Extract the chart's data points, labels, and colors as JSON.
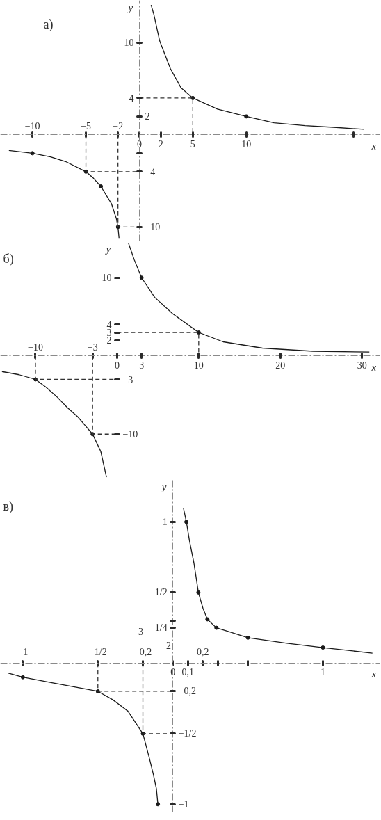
{
  "chart_data": [
    {
      "type": "line",
      "title": "а)",
      "xlabel": "x",
      "ylabel": "y",
      "xlim": [
        -13,
        22.5
      ],
      "ylim": [
        -11.6,
        14.6
      ],
      "xticks": [
        0,
        2,
        5,
        10,
        {
          "value": 20,
          "label": null
        }
      ],
      "x2lim": [
        -13,
        22.5
      ],
      "x2ticks": [
        {
          "value": -10,
          "label": "−10"
        },
        {
          "value": -5,
          "label": "−5"
        },
        {
          "value": -2,
          "label": "−2"
        }
      ],
      "yticks": [
        10,
        4
      ],
      "y2lim": [
        -11.6,
        14.6
      ],
      "y2ticks": [
        2,
        {
          "value": -2,
          "label": null
        },
        {
          "value": -4,
          "label": "−4"
        },
        {
          "value": -10,
          "label": "−10"
        }
      ],
      "series": [
        {
          "color": "#1a1a1a",
          "x": [
            1.1,
            1.35,
            1.9,
            2.4,
            2.9,
            3.9,
            5,
            7.3,
            10,
            12.6,
            15.5,
            18.4,
            21
          ],
          "values": [
            14.1,
            13.1,
            10.2,
            8.7,
            7.2,
            5.1,
            4,
            2.8,
            2,
            1.3,
            1.0,
            0.8,
            0.6
          ]
        },
        {
          "color": "#1a1a1a",
          "x": [
            -12.2,
            -10,
            -8.3,
            -6.9,
            -5,
            -4.3,
            -3.6,
            -2.6,
            -2.15,
            -2,
            -1.9
          ],
          "values": [
            -1.7,
            -2,
            -2.4,
            -2.9,
            -4,
            -4.7,
            -5.6,
            -7.5,
            -9.1,
            -10,
            -11.2
          ]
        },
        {
          "type": "scatter",
          "color": "#1a1a1a",
          "marker": "circle",
          "x": [
            5,
            10,
            -10,
            -5,
            -3.6,
            -2
          ],
          "values": [
            4,
            2,
            -2,
            -4,
            -5.6,
            -10
          ]
        },
        {
          "color": "#333333",
          "line_style": "dashed",
          "x": [
            0,
            5,
            5
          ],
          "values": [
            4,
            4,
            0
          ]
        },
        {
          "color": "#333333",
          "line_style": "dashed",
          "x": [
            -5,
            -5,
            0
          ],
          "values": [
            0,
            -4,
            -4
          ]
        },
        {
          "color": "#333333",
          "line_style": "dashed",
          "x": [
            -2,
            -2,
            0
          ],
          "values": [
            0,
            -10,
            -10
          ]
        }
      ]
    },
    {
      "type": "line",
      "title": "б)",
      "xlabel": "x",
      "ylabel": "y",
      "xlim": [
        -14.3,
        32.2
      ],
      "ylim": [
        -15.8,
        14.6
      ],
      "xticks": [
        0,
        3,
        10,
        20,
        30
      ],
      "x2lim": [
        -14.3,
        32.2
      ],
      "x2ticks": [
        {
          "value": -10,
          "label": "−10"
        },
        {
          "value": -3,
          "label": "−3"
        }
      ],
      "yticks": [
        10,
        4,
        3,
        2
      ],
      "y2lim": [
        -15.8,
        14.6
      ],
      "y2ticks": [
        {
          "value": -3,
          "label": "−3"
        },
        {
          "value": -10,
          "label": "−10"
        }
      ],
      "series": [
        {
          "color": "#1a1a1a",
          "x": [
            1.4,
            2.1,
            3,
            4.6,
            6.8,
            10,
            13,
            17.8,
            24,
            30.9
          ],
          "values": [
            14.4,
            12.3,
            10,
            7.5,
            5.4,
            3,
            1.8,
            1.0,
            0.6,
            0.5
          ]
        },
        {
          "color": "#1a1a1a",
          "x": [
            -14.1,
            -12,
            -10,
            -8.7,
            -7.3,
            -6.1,
            -4.8,
            -3.9,
            -3,
            -2.5,
            -2,
            -1.3
          ],
          "values": [
            -2,
            -2.4,
            -3,
            -4,
            -5.3,
            -6.6,
            -7.8,
            -8.9,
            -10,
            -11.1,
            -12.2,
            -15.5
          ]
        },
        {
          "type": "scatter",
          "color": "#1a1a1a",
          "marker": "circle",
          "x": [
            3,
            10,
            -10,
            -3
          ],
          "values": [
            10,
            3,
            -3,
            -10
          ]
        },
        {
          "color": "#333333",
          "line_style": "dashed",
          "x": [
            0,
            10,
            10
          ],
          "values": [
            3,
            3,
            0
          ]
        },
        {
          "color": "#333333",
          "line_style": "dashed",
          "x": [
            -10,
            -10,
            0
          ],
          "values": [
            0,
            -3,
            -3
          ]
        },
        {
          "color": "#333333",
          "line_style": "dashed",
          "x": [
            -3,
            -3,
            0
          ],
          "values": [
            0,
            -10,
            -10
          ]
        }
      ]
    },
    {
      "type": "line",
      "title": "в)",
      "xlabel": "x",
      "ylabel": "y",
      "xlim": [
        -1.15,
        1.38
      ],
      "ylim": [
        -1.06,
        1.3
      ],
      "xticks": [
        0,
        {
          "value": 0.1,
          "label": "0,1"
        },
        {
          "value": 0.3,
          "label": null
        },
        {
          "value": 0.5,
          "label": null
        },
        1
      ],
      "x2lim": [
        -1.15,
        1.38
      ],
      "x2ticks": [
        {
          "value": -1,
          "label": "−1"
        },
        {
          "value": -0.5,
          "label": "−1/2"
        },
        {
          "value": -0.2,
          "label": "−0,2"
        },
        {
          "value": 0.2,
          "label": "0,2"
        }
      ],
      "yticks": [
        {
          "value": 1,
          "label": "1"
        },
        {
          "value": 0.5,
          "label": "1/2"
        },
        {
          "value": 0.3,
          "label": null
        },
        {
          "value": 0.25,
          "label": "1/4"
        }
      ],
      "y2lim": [
        -1.06,
        1.3
      ],
      "y2ticks": [
        {
          "value": -0.2,
          "label": "−0,2"
        },
        {
          "value": -0.5,
          "label": "−1/2"
        },
        {
          "value": -1,
          "label": "−1"
        }
      ],
      "annotations": [
        "−3",
        "2"
      ],
      "series": [
        {
          "color": "#1a1a1a",
          "x": [
            0.07,
            0.09,
            0.11,
            0.14,
            0.17,
            0.2,
            0.23,
            0.29,
            0.38,
            0.5,
            0.76,
            1.0,
            1.33
          ],
          "values": [
            1.1,
            1.0,
            0.87,
            0.71,
            0.5,
            0.39,
            0.31,
            0.25,
            0.22,
            0.18,
            0.14,
            0.11,
            0.07
          ]
        },
        {
          "color": "#1a1a1a",
          "x": [
            -1.1,
            -1,
            -0.8,
            -0.5,
            -0.4,
            -0.3,
            -0.2,
            -0.16,
            -0.13,
            -0.11,
            -0.1
          ],
          "values": [
            -0.07,
            -0.1,
            -0.14,
            -0.2,
            -0.26,
            -0.34,
            -0.5,
            -0.66,
            -0.79,
            -0.89,
            -1
          ]
        },
        {
          "type": "scatter",
          "color": "#1a1a1a",
          "marker": "circle",
          "x": [
            0.09,
            0.17,
            0.23,
            0.29,
            0.5,
            1.0,
            -1,
            -0.5,
            -0.2,
            -0.1
          ],
          "values": [
            1.0,
            0.5,
            0.31,
            0.25,
            0.18,
            0.11,
            -0.1,
            -0.2,
            -0.5,
            -1
          ]
        },
        {
          "color": "#333333",
          "line_style": "dashed",
          "x": [
            -0.5,
            -0.5,
            0
          ],
          "values": [
            0,
            -0.2,
            -0.2
          ]
        },
        {
          "color": "#333333",
          "line_style": "dashed",
          "x": [
            -0.2,
            -0.2,
            0
          ],
          "values": [
            0,
            -0.5,
            -0.5
          ]
        }
      ]
    }
  ]
}
